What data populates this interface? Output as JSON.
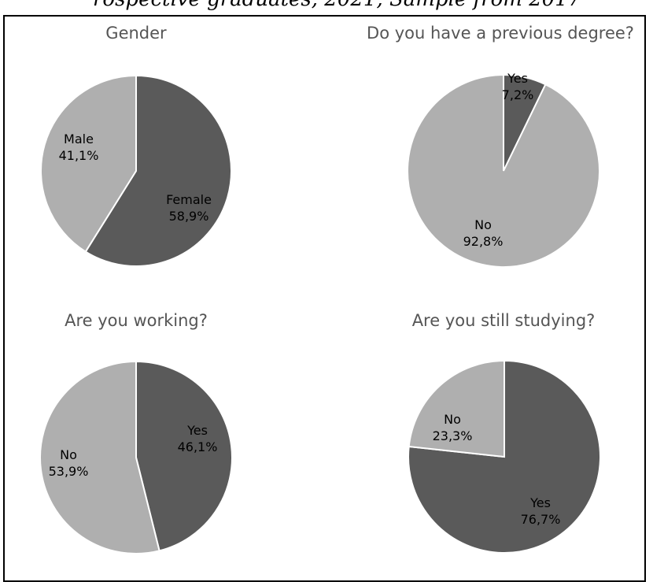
{
  "page_header_text": "rospective graduates, 2021, Sample from 2017",
  "chart_data": [
    {
      "type": "pie",
      "title": "Gender",
      "series": [
        {
          "label": "Female",
          "pct_label": "58,9%",
          "value": 58.9,
          "color": "#5a5a5a"
        },
        {
          "label": "Male",
          "pct_label": "41,1%",
          "value": 41.1,
          "color": "#afafaf"
        }
      ]
    },
    {
      "type": "pie",
      "title": "Do you have a previous degree?",
      "series": [
        {
          "label": "Yes",
          "pct_label": "7,2%",
          "value": 7.2,
          "color": "#5a5a5a"
        },
        {
          "label": "No",
          "pct_label": "92,8%",
          "value": 92.8,
          "color": "#afafaf"
        }
      ]
    },
    {
      "type": "pie",
      "title": "Are you working?",
      "series": [
        {
          "label": "Yes",
          "pct_label": "46,1%",
          "value": 46.1,
          "color": "#5a5a5a"
        },
        {
          "label": "No",
          "pct_label": "53,9%",
          "value": 53.9,
          "color": "#afafaf"
        }
      ]
    },
    {
      "type": "pie",
      "title": "Are you still studying?",
      "series": [
        {
          "label": "Yes",
          "pct_label": "76,7%",
          "value": 76.7,
          "color": "#5a5a5a"
        },
        {
          "label": "No",
          "pct_label": "23,3%",
          "value": 23.3,
          "color": "#afafaf"
        }
      ]
    }
  ]
}
